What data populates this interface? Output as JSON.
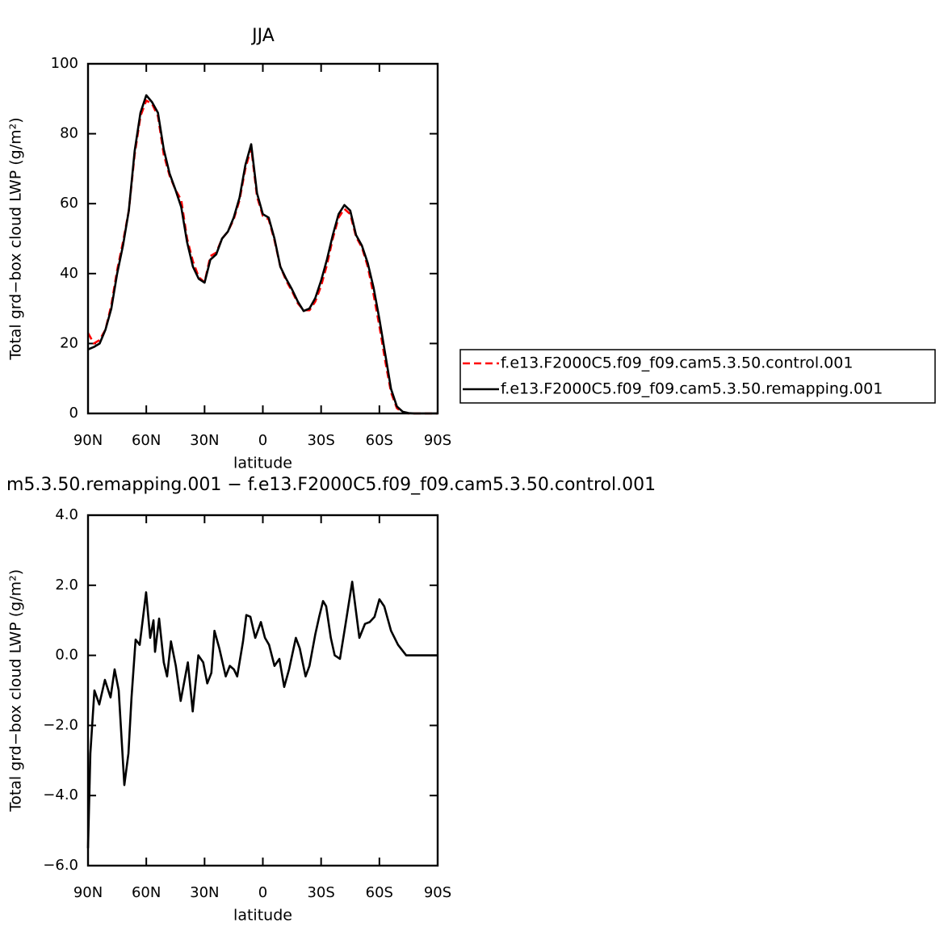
{
  "chart_data": [
    {
      "type": "line",
      "title": "JJA",
      "x_label": "latitude",
      "y_label": "Total grd−box cloud LWP (g/m²)",
      "x": [
        90,
        87,
        84,
        81,
        78,
        75,
        72,
        69,
        66,
        63,
        60,
        57,
        54,
        51,
        48,
        45,
        42,
        39,
        36,
        33,
        30,
        27,
        24,
        21,
        18,
        15,
        12,
        9,
        6,
        3,
        0,
        -3,
        -6,
        -9,
        -12,
        -15,
        -18,
        -21,
        -24,
        -27,
        -30,
        -33,
        -36,
        -39,
        -42,
        -45,
        -48,
        -51,
        -54,
        -57,
        -60,
        -63,
        -66,
        -69,
        -72,
        -75,
        -78,
        -81,
        -84,
        -87,
        -90
      ],
      "series": [
        {
          "name": "f.e13.F2000C5.f09_f09.cam5.3.50.control.001",
          "color": "#ff0000",
          "line_style": "dashed",
          "values": [
            23,
            20,
            21,
            24,
            31,
            41,
            49,
            58,
            74,
            85,
            89.5,
            88.5,
            85,
            74,
            68,
            64,
            61,
            50,
            43.5,
            39,
            37.5,
            45,
            46,
            50,
            52,
            55.5,
            61,
            70,
            76,
            62,
            56.5,
            55.5,
            49.5,
            42,
            38,
            35,
            31.5,
            29.5,
            29.5,
            32,
            36.5,
            42.5,
            50,
            56,
            58.5,
            57,
            50.5,
            47.5,
            42,
            34,
            25,
            15,
            6,
            1.5,
            0.3,
            0,
            0,
            0,
            0,
            0,
            0
          ]
        },
        {
          "name": "f.e13.F2000C5.f09_f09.cam5.3.50.remapping.001",
          "color": "#000000",
          "line_style": "solid",
          "values": [
            18.3,
            19,
            20,
            24,
            30,
            40,
            48,
            58,
            75,
            86,
            91,
            89,
            86,
            75.5,
            68.6,
            64,
            59,
            49,
            42,
            38.5,
            37.4,
            44,
            45.5,
            50,
            52,
            56,
            61.7,
            71,
            77,
            63,
            57,
            56,
            50,
            42,
            38.5,
            35.5,
            32,
            29.3,
            30,
            33,
            38,
            44,
            51,
            57,
            59.6,
            58,
            51,
            48,
            43,
            36,
            27,
            17,
            7,
            2,
            0.5,
            0.1,
            0,
            0,
            0,
            0,
            0
          ]
        }
      ],
      "xlim": [
        90,
        -90
      ],
      "xticks": [
        {
          "value": 90,
          "label": "90N"
        },
        {
          "value": 60,
          "label": "60N"
        },
        {
          "value": 30,
          "label": "30N"
        },
        0,
        {
          "value": -30,
          "label": "30S"
        },
        {
          "value": -60,
          "label": "60S"
        },
        {
          "value": -90,
          "label": "90S"
        }
      ],
      "ylim": [
        0,
        100
      ],
      "yticks": [
        0,
        20,
        40,
        60,
        80,
        100
      ],
      "grid": false,
      "legend": "right"
    },
    {
      "type": "line",
      "title": "m5.3.50.remapping.001 − f.e13.F2000C5.f09_f09.cam5.3.50.control.001",
      "x_label": "latitude",
      "y_label": "Total grd−box cloud LWP (g/m²)",
      "x": [
        90,
        88.8,
        86.7,
        84.2,
        81.3,
        78.4,
        76.3,
        74.2,
        71.3,
        69.2,
        67.6,
        65.5,
        63.4,
        60.1,
        58,
        56.3,
        55.5,
        53.4,
        51,
        49.3,
        47.3,
        44.8,
        42.3,
        38.6,
        36.1,
        33.2,
        30.7,
        28.6,
        26.5,
        24.9,
        22.4,
        19.1,
        17,
        14.9,
        13.2,
        10.2,
        8.5,
        6.4,
        3.9,
        1,
        -1.1,
        -3.2,
        -6,
        -8.5,
        -11,
        -13.5,
        -17,
        -19,
        -22,
        -24,
        -27,
        -29,
        -31,
        -32.6,
        -35,
        -37,
        -39.7,
        -42.6,
        -46,
        -49.7,
        -52.6,
        -55,
        -57.5,
        -60,
        -62.5,
        -66,
        -69.6,
        -73.8,
        -90
      ],
      "series": [
        {
          "name": null,
          "color": "#000000",
          "line_style": "solid",
          "values": [
            -5.5,
            -2.8,
            -1.0,
            -1.4,
            -0.7,
            -1.2,
            -0.4,
            -1.0,
            -3.7,
            -2.8,
            -1.2,
            0.45,
            0.3,
            1.8,
            0.5,
            1.0,
            0.1,
            1.05,
            -0.2,
            -0.6,
            0.4,
            -0.3,
            -1.3,
            -0.2,
            -1.6,
            0.0,
            -0.2,
            -0.8,
            -0.5,
            0.7,
            0.2,
            -0.6,
            -0.3,
            -0.4,
            -0.6,
            0.4,
            1.15,
            1.1,
            0.5,
            0.95,
            0.5,
            0.3,
            -0.3,
            -0.1,
            -0.9,
            -0.4,
            0.5,
            0.2,
            -0.6,
            -0.3,
            0.6,
            1.1,
            1.55,
            1.4,
            0.5,
            0.0,
            -0.1,
            0.9,
            2.1,
            0.5,
            0.9,
            0.95,
            1.1,
            1.6,
            1.4,
            0.7,
            0.3,
            0.0,
            0.0
          ]
        }
      ],
      "xlim": [
        90,
        -90
      ],
      "xticks": [
        {
          "value": 90,
          "label": "90N"
        },
        {
          "value": 60,
          "label": "60N"
        },
        {
          "value": 30,
          "label": "30N"
        },
        0,
        {
          "value": -30,
          "label": "30S"
        },
        {
          "value": -60,
          "label": "60S"
        },
        {
          "value": -90,
          "label": "90S"
        }
      ],
      "ylim": [
        -6,
        4
      ],
      "yticks": [
        {
          "value": -6,
          "label": "−6.0"
        },
        {
          "value": -4,
          "label": "−4.0"
        },
        {
          "value": -2,
          "label": "−2.0"
        },
        {
          "value": 0,
          "label": "0.0"
        },
        {
          "value": 2,
          "label": "2.0"
        },
        {
          "value": 4,
          "label": "4.0"
        }
      ],
      "grid": false
    }
  ]
}
